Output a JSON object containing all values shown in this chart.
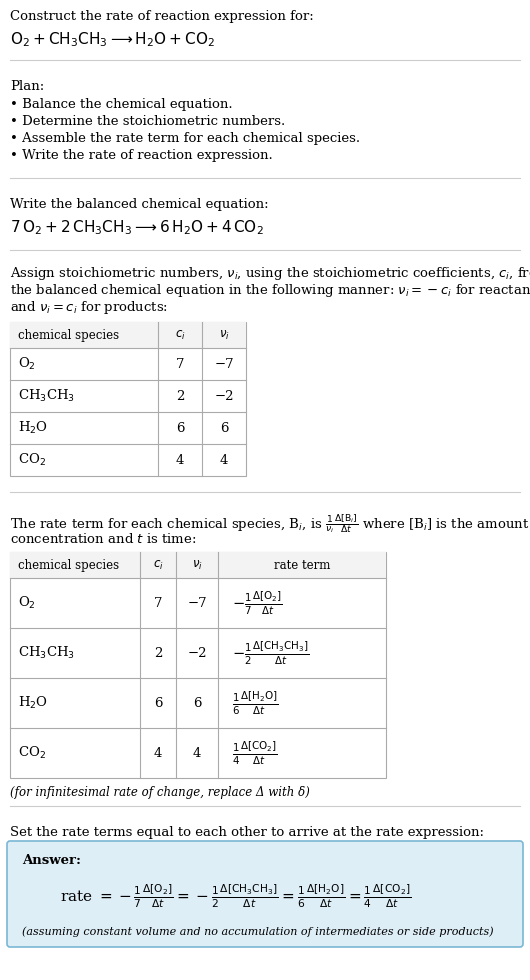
{
  "bg_color": "#ffffff",
  "text_color": "#000000",
  "separator_color": "#cccccc",
  "grid_color": "#aaaaaa",
  "plan_items": [
    "• Balance the chemical equation.",
    "• Determine the stoichiometric numbers.",
    "• Assemble the rate term for each chemical species.",
    "• Write the rate of reaction expression."
  ],
  "table1_data": [
    [
      "O$_2$",
      "7",
      "−7"
    ],
    [
      "CH$_3$CH$_3$",
      "2",
      "−2"
    ],
    [
      "H$_2$O",
      "6",
      "6"
    ],
    [
      "CO$_2$",
      "4",
      "4"
    ]
  ],
  "table2_data": [
    [
      "O$_2$",
      "7",
      "−7"
    ],
    [
      "CH$_3$CH$_3$",
      "2",
      "−2"
    ],
    [
      "H$_2$O",
      "6",
      "6"
    ],
    [
      "CO$_2$",
      "4",
      "4"
    ]
  ],
  "infinitesimal_note": "(for infinitesimal rate of change, replace Δ with δ)",
  "answer_box_color": "#deeef6",
  "answer_box_border": "#7ab8d4",
  "assuming_note": "(assuming constant volume and no accumulation of intermediates or side products)"
}
